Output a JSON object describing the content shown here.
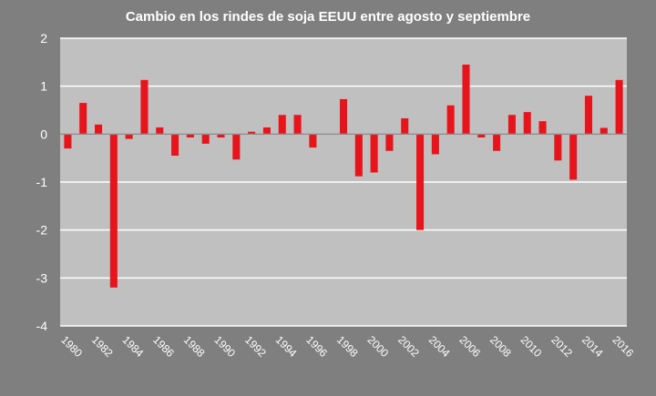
{
  "chart_data": {
    "type": "bar",
    "title": "Cambio en los rindes de soja EEUU entre agosto y septiembre",
    "xlabel": "",
    "ylabel": "",
    "ylim": [
      -4,
      2
    ],
    "y_ticks": [
      "2",
      "1",
      "0",
      "-1",
      "-2",
      "-3",
      "-4"
    ],
    "categories": [
      "1980",
      "1981",
      "1982",
      "1983",
      "1984",
      "1985",
      "1986",
      "1987",
      "1988",
      "1989",
      "1990",
      "1991",
      "1992",
      "1993",
      "1994",
      "1995",
      "1996",
      "1997",
      "1998",
      "1999",
      "2000",
      "2001",
      "2002",
      "2003",
      "2004",
      "2005",
      "2006",
      "2007",
      "2008",
      "2009",
      "2010",
      "2011",
      "2012",
      "2013",
      "2014",
      "2015",
      "2016"
    ],
    "x_tick_labels": [
      "1980",
      "1982",
      "1984",
      "1986",
      "1988",
      "1990",
      "1992",
      "1994",
      "1996",
      "1998",
      "2000",
      "2002",
      "2004",
      "2006",
      "2008",
      "2010",
      "2012",
      "2014",
      "2016"
    ],
    "values": [
      -0.3,
      0.65,
      0.2,
      -3.2,
      -0.1,
      1.13,
      0.14,
      -0.45,
      -0.07,
      -0.2,
      -0.07,
      -0.53,
      0.05,
      0.14,
      0.4,
      0.4,
      -0.28,
      0.0,
      0.73,
      -0.88,
      -0.8,
      -0.35,
      0.33,
      -2.0,
      -0.42,
      0.6,
      1.45,
      -0.07,
      -0.35,
      0.4,
      0.46,
      0.27,
      -0.55,
      -0.95,
      0.8,
      0.13,
      1.13
    ],
    "bar_color": "#e8141c",
    "plot_background": "#c0c0c0",
    "grid": true
  }
}
